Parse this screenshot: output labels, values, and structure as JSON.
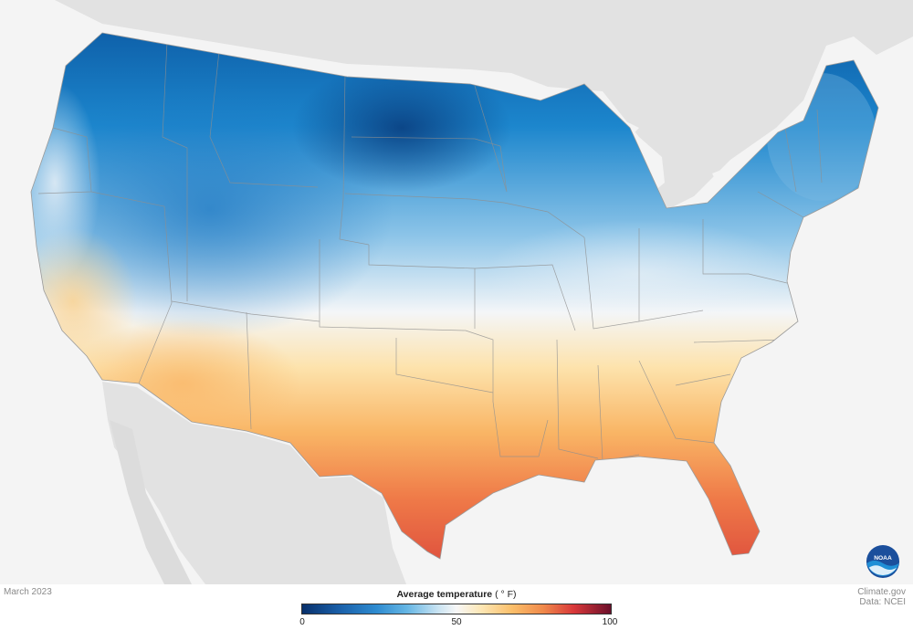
{
  "map": {
    "date_label": "March 2023",
    "credit_site": "Climate.gov",
    "credit_source": "Data: NCEI",
    "logo_icon": "noaa-logo-icon",
    "colors": {
      "background": "#f4f4f4",
      "neighbor_land": "#e2e2e2",
      "state_border": "#8f8f8f"
    }
  },
  "legend": {
    "title": "Average temperature",
    "unit": "( ° F)",
    "ticks": [
      "0",
      "50",
      "100"
    ],
    "min": 0,
    "max": 100,
    "colors": [
      "#08306b",
      "#2e8bd0",
      "#f7f7f7",
      "#fbbf6a",
      "#d9383a",
      "#6b0f2a"
    ]
  }
}
